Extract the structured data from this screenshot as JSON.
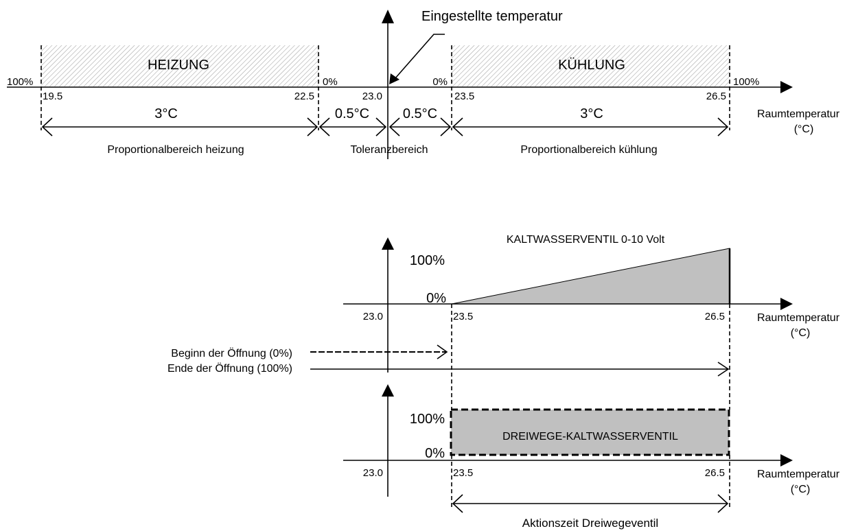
{
  "colors": {
    "line": "#000000",
    "fill_gray": "#c0c0c0",
    "hatch": "#a8a8a8",
    "background": "#ffffff"
  },
  "top": {
    "setpoint_label": "Eingestellte temperatur",
    "heating_zone": "HEIZUNG",
    "cooling_zone": "KÜHLUNG",
    "pct_100_left": "100%",
    "pct_0_left": "0%",
    "pct_0_right": "0%",
    "pct_100_right": "100%",
    "ticks": {
      "t195": "19.5",
      "t225": "22.5",
      "t230": "23.0",
      "t235": "23.5",
      "t265": "26.5"
    },
    "span_heat": "3°C",
    "span_tol_left": "0.5°C",
    "span_tol_right": "0.5°C",
    "span_cool": "3°C",
    "axis_label_line1": "Raumtemperatur",
    "axis_label_line2": "(°C)",
    "band_heat": "Proportionalbereich heizung",
    "band_tol": "Toleranzbereich",
    "band_cool": "Proportionalbereich kühlung"
  },
  "middle": {
    "title": "KALTWASSERVENTIL 0-10 Volt",
    "y_100": "100%",
    "y_0": "0%",
    "ticks": {
      "t230": "23.0",
      "t235": "23.5",
      "t265": "26.5"
    },
    "axis_label_line1": "Raumtemperatur",
    "axis_label_line2": "(°C)",
    "start_label": "Beginn der Öffnung (0%)",
    "end_label": "Ende der Öffnung (100%)",
    "ramp": {
      "start_temp": 23.5,
      "end_temp": 26.5,
      "start_pct": 0,
      "end_pct": 100
    }
  },
  "bottom": {
    "box_label": "DREIWEGE-KALTWASSERVENTIL",
    "y_100": "100%",
    "y_0": "0%",
    "ticks": {
      "t230": "23.0",
      "t235": "23.5",
      "t265": "26.5"
    },
    "axis_label_line1": "Raumtemperatur",
    "axis_label_line2": "(°C)",
    "action_label": "Aktionszeit Dreiwegeventil"
  }
}
